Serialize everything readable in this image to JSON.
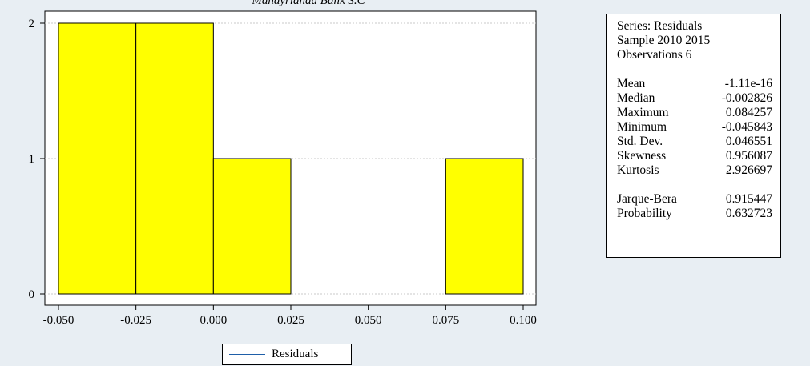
{
  "chart_data": {
    "type": "bar",
    "title": "Mandyríanaa Bank S.C",
    "bins": [
      {
        "from": -0.05,
        "to": -0.025,
        "count": 2
      },
      {
        "from": -0.025,
        "to": 0.0,
        "count": 2
      },
      {
        "from": 0.0,
        "to": 0.025,
        "count": 1
      },
      {
        "from": 0.075,
        "to": 0.1,
        "count": 1
      }
    ],
    "xlim": [
      -0.05,
      0.1
    ],
    "ylim": [
      0,
      2
    ],
    "xticks": [
      "-0.050",
      "-0.025",
      "0.000",
      "0.025",
      "0.050",
      "0.075",
      "0.100"
    ],
    "yticks": [
      "0",
      "1",
      "2"
    ],
    "bar_color": "#ffff00",
    "grid": true,
    "legend": {
      "position": "bottom-center",
      "series": [
        "Residuals"
      ],
      "color": "#1f5fa8"
    }
  },
  "stats": {
    "series": "Series: Residuals",
    "sample": "Sample 2010 2015",
    "observations": "Observations 6",
    "rows": [
      {
        "label": "Mean",
        "value": "-1.11e-16"
      },
      {
        "label": "Median",
        "value": "-0.002826"
      },
      {
        "label": "Maximum",
        "value": "0.084257"
      },
      {
        "label": "Minimum",
        "value": "-0.045843"
      },
      {
        "label": "Std. Dev.",
        "value": "0.046551"
      },
      {
        "label": "Skewness",
        "value": "0.956087"
      },
      {
        "label": "Kurtosis",
        "value": "2.926697"
      }
    ],
    "tests": [
      {
        "label": "Jarque-Bera",
        "value": "0.915447"
      },
      {
        "label": "Probability",
        "value": "0.632723"
      }
    ]
  }
}
